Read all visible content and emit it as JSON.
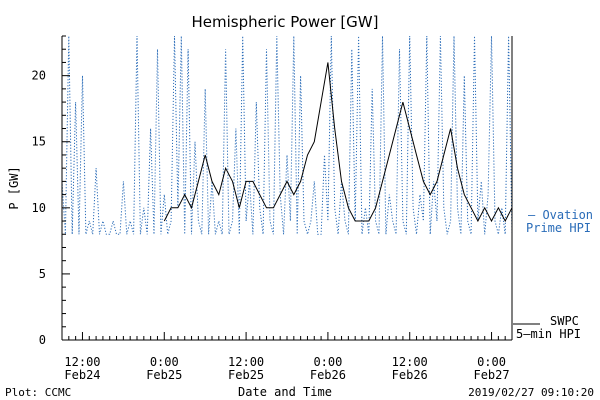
{
  "chart_data": {
    "type": "line",
    "title": "Hemispheric Power [GW]",
    "ylabel": "P [GW]",
    "xlabel": "Date and Time",
    "ylim": [
      0,
      23
    ],
    "y_ticks": [
      0,
      5,
      10,
      15,
      20
    ],
    "xlim": [
      -3,
      63
    ],
    "x_ticks": [
      {
        "x": 0,
        "time": "12:00",
        "date": "Feb24"
      },
      {
        "x": 12,
        "time": "0:00",
        "date": "Feb25"
      },
      {
        "x": 24,
        "time": "12:00",
        "date": "Feb25"
      },
      {
        "x": 36,
        "time": "0:00",
        "date": "Feb26"
      },
      {
        "x": 48,
        "time": "12:00",
        "date": "Feb26"
      },
      {
        "x": 60,
        "time": "0:00",
        "date": "Feb27"
      }
    ],
    "series": [
      {
        "name": "Ovation Prime HPI",
        "legend_line1": "— Ovation",
        "legend_line2": "Prime HPI",
        "color": "#2a6cb8",
        "style": "dotted",
        "x": [
          -3,
          -2.5,
          -2,
          -1.5,
          -1,
          -0.5,
          0,
          0.5,
          1,
          1.5,
          2,
          2.5,
          3,
          3.5,
          4,
          4.5,
          5,
          5.5,
          6,
          6.5,
          7,
          7.5,
          8,
          8.5,
          9,
          9.5,
          10,
          10.5,
          11,
          11.5,
          12,
          12.5,
          13,
          13.5,
          14,
          14.5,
          15,
          15.5,
          16,
          16.5,
          17,
          17.5,
          18,
          18.5,
          19,
          19.5,
          20,
          20.5,
          21,
          21.5,
          22,
          22.5,
          23,
          23.5,
          24,
          24.5,
          25,
          25.5,
          26,
          26.5,
          27,
          27.5,
          28,
          28.5,
          29,
          29.5,
          30,
          30.5,
          31,
          31.5,
          32,
          32.5,
          33,
          33.5,
          34,
          34.5,
          35,
          35.5,
          36,
          36.5,
          37,
          37.5,
          38,
          38.5,
          39,
          39.5,
          40,
          40.5,
          41,
          41.5,
          42,
          42.5,
          43,
          43.5,
          44,
          44.5,
          45,
          45.5,
          46,
          46.5,
          47,
          47.5,
          48,
          48.5,
          49,
          49.5,
          50,
          50.5,
          51,
          51.5,
          52,
          52.5,
          53,
          53.5,
          54,
          54.5,
          55,
          55.5,
          56,
          56.5,
          57,
          57.5,
          58,
          58.5,
          59,
          59.5,
          60,
          60.5,
          61,
          61.5,
          62,
          62.5,
          63
        ],
        "y": [
          12,
          8,
          23,
          8,
          18,
          8,
          20,
          8,
          9,
          8,
          13,
          8,
          9,
          8,
          8,
          9,
          8,
          8,
          12,
          8,
          9,
          8,
          23,
          8,
          10,
          8,
          16,
          8,
          22,
          8,
          11,
          8,
          9,
          23,
          10,
          23,
          8,
          22,
          8,
          15,
          9,
          8,
          19,
          8,
          12,
          8,
          9,
          8,
          22,
          8,
          9,
          16,
          8,
          23,
          9,
          12,
          8,
          18,
          10,
          8,
          22,
          9,
          8,
          23,
          11,
          8,
          14,
          9,
          23,
          8,
          20,
          9,
          8,
          9,
          12,
          8,
          8,
          14,
          9,
          23,
          10,
          8,
          12,
          9,
          8,
          22,
          9,
          23,
          8,
          10,
          8,
          19,
          9,
          8,
          23,
          8,
          11,
          9,
          8,
          22,
          9,
          8,
          23,
          10,
          8,
          11,
          9,
          23,
          8,
          12,
          9,
          23,
          10,
          8,
          9,
          23,
          10,
          8,
          20,
          9,
          8,
          23,
          9,
          12,
          8,
          11,
          23,
          9,
          8,
          10,
          8,
          23,
          8
        ]
      },
      {
        "name": "SWPC 5-min HPI",
        "legend_line1": "SWPC",
        "legend_line2": "5—min HPI",
        "color": "#000000",
        "style": "solid",
        "x": [
          12,
          13,
          14,
          15,
          16,
          17,
          18,
          19,
          20,
          21,
          22,
          23,
          24,
          25,
          26,
          27,
          28,
          29,
          30,
          31,
          32,
          33,
          34,
          35,
          36,
          37,
          38,
          39,
          40,
          41,
          42,
          43,
          44,
          45,
          46,
          47,
          48,
          49,
          50,
          51,
          52,
          53,
          54,
          55,
          56,
          57,
          58,
          59,
          60,
          61,
          62,
          63
        ],
        "y": [
          9,
          10,
          10,
          11,
          10,
          12,
          14,
          12,
          11,
          13,
          12,
          10,
          12,
          12,
          11,
          10,
          10,
          11,
          12,
          11,
          12,
          14,
          15,
          18,
          21,
          16,
          12,
          10,
          9,
          9,
          9,
          10,
          12,
          14,
          16,
          18,
          16,
          14,
          12,
          11,
          12,
          14,
          16,
          13,
          11,
          10,
          9,
          10,
          9,
          10,
          9,
          10
        ]
      }
    ],
    "footer": {
      "left": "Plot: CCMC",
      "right": "2019/02/27 09:10:20"
    }
  }
}
